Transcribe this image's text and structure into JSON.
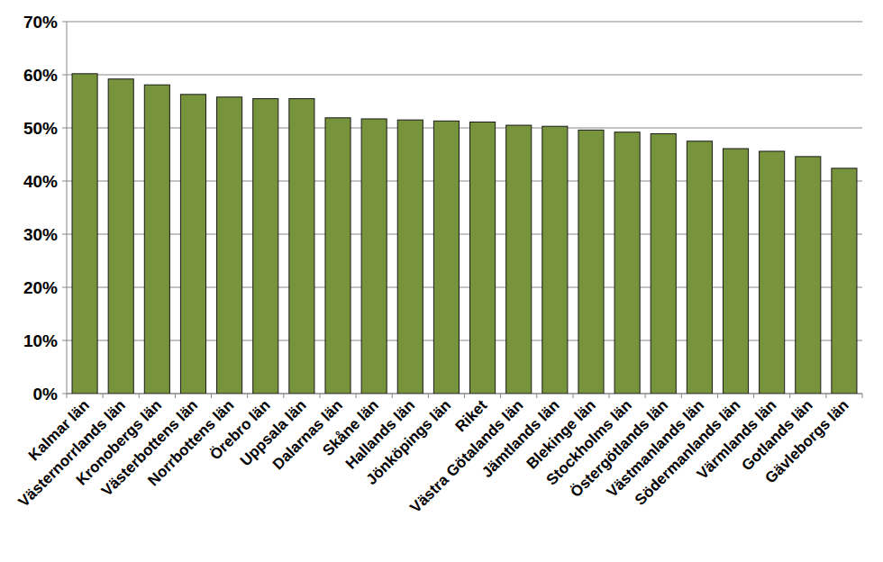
{
  "chart_data": {
    "type": "bar",
    "categories": [
      "Kalmar län",
      "Västernorrlands län",
      "Kronobergs län",
      "Västerbottens län",
      "Norrbottens län",
      "Örebro län",
      "Uppsala län",
      "Dalarnas län",
      "Skåne län",
      "Hallands län",
      "Jönköpings län",
      "Riket",
      "Västra Götalands län",
      "Jämtlands län",
      "Blekinge län",
      "Stockholms län",
      "Östergötlands län",
      "Västmanlands län",
      "Södermanlands län",
      "Värmlands län",
      "Gotlands län",
      "Gävleborgs län"
    ],
    "values": [
      60.2,
      59.2,
      58.1,
      56.3,
      55.8,
      55.5,
      55.5,
      51.9,
      51.7,
      51.5,
      51.3,
      51.1,
      50.5,
      50.3,
      49.6,
      49.2,
      48.9,
      47.5,
      46.1,
      45.6,
      44.6,
      42.4
    ],
    "color": "#77933c",
    "ylim": [
      0,
      70
    ],
    "yticks": [
      {
        "value": 0,
        "label": "0%"
      },
      {
        "value": 10,
        "label": "10%"
      },
      {
        "value": 20,
        "label": "20%"
      },
      {
        "value": 30,
        "label": "30%"
      },
      {
        "value": 40,
        "label": "40%"
      },
      {
        "value": 50,
        "label": "50%"
      },
      {
        "value": 60,
        "label": "60%"
      },
      {
        "value": 70,
        "label": "70%"
      }
    ],
    "grid": true
  }
}
